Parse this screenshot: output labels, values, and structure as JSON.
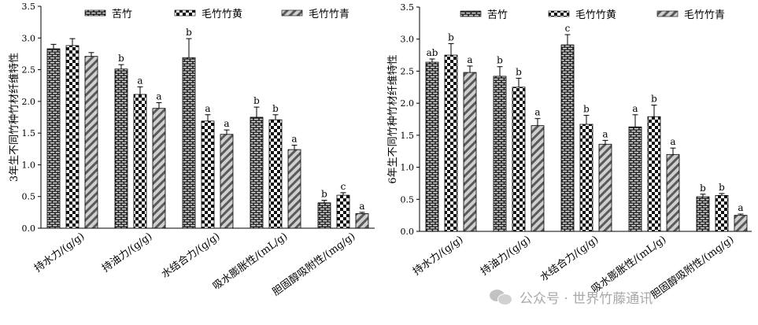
{
  "colors": {
    "axis": "#000000",
    "bar_stroke": "#000000",
    "watermark": "#9a9a9a"
  },
  "legend_patterns": [
    "brick",
    "checker",
    "diagonal"
  ],
  "watermark": {
    "icon": "wechat-icon",
    "text": "公众号 · 世界竹藤通讯"
  },
  "chart_data": [
    {
      "type": "bar",
      "panel": "left",
      "categories": [
        "持水力/(g/g)",
        "持油力/(g/g)",
        "水结合力/(g/g)",
        "吸水膨胀性/(mL/g)",
        "胆固醇吸附性/(mg/g)"
      ],
      "series": [
        {
          "name": "苦竹",
          "pattern": "brick",
          "values": [
            2.83,
            2.51,
            2.69,
            1.75,
            0.4
          ],
          "errors": [
            0.07,
            0.07,
            0.3,
            0.16,
            0.04
          ],
          "letters": [
            "",
            "b",
            "b",
            "b",
            "b"
          ]
        },
        {
          "name": "毛竹竹黄",
          "pattern": "checker",
          "values": [
            2.88,
            2.11,
            1.69,
            1.71,
            0.52
          ],
          "errors": [
            0.11,
            0.12,
            0.1,
            0.08,
            0.04
          ],
          "letters": [
            "",
            "a",
            "a",
            "b",
            "c"
          ]
        },
        {
          "name": "毛竹竹青",
          "pattern": "diagonal",
          "values": [
            2.71,
            1.89,
            1.48,
            1.24,
            0.23
          ],
          "errors": [
            0.06,
            0.09,
            0.07,
            0.07,
            0.02
          ],
          "letters": [
            "",
            "a",
            "a",
            "a",
            "a"
          ]
        }
      ],
      "ylabel": "3年生不同竹种竹材纤维特性",
      "xlabel": "",
      "ylim": [
        0,
        3.5
      ],
      "yticks": [
        "0.0",
        "0.5",
        "1.0",
        "1.5",
        "2.0",
        "2.5",
        "3.0",
        "3.5"
      ],
      "grid": false,
      "legend": "top"
    },
    {
      "type": "bar",
      "panel": "right",
      "categories": [
        "持水力/(g/g)",
        "持油力/(g/g)",
        "水结合力/(g/g)",
        "吸水膨胀性/(mL/g)",
        "胆固醇吸附性/(mg/g)"
      ],
      "series": [
        {
          "name": "苦竹",
          "pattern": "brick",
          "values": [
            2.64,
            2.42,
            2.91,
            1.63,
            0.54
          ],
          "errors": [
            0.05,
            0.15,
            0.16,
            0.19,
            0.04
          ],
          "letters": [
            "ab",
            "b",
            "c",
            "a",
            "b"
          ]
        },
        {
          "name": "毛竹竹黄",
          "pattern": "checker",
          "values": [
            2.75,
            2.25,
            1.67,
            1.79,
            0.56
          ],
          "errors": [
            0.18,
            0.14,
            0.14,
            0.18,
            0.03
          ],
          "letters": [
            "b",
            "b",
            "b",
            "b",
            "b"
          ]
        },
        {
          "name": "毛竹竹青",
          "pattern": "diagonal",
          "values": [
            2.48,
            1.65,
            1.36,
            1.2,
            0.25
          ],
          "errors": [
            0.1,
            0.11,
            0.06,
            0.1,
            0.02
          ],
          "letters": [
            "a",
            "a",
            "a",
            "a",
            "a"
          ]
        }
      ],
      "ylabel": "6年生不同竹种竹材纤维特性",
      "xlabel": "",
      "ylim": [
        0,
        3.5
      ],
      "yticks": [
        "0.0",
        "0.5",
        "1.0",
        "1.5",
        "2.0",
        "2.5",
        "3.0",
        "3.5"
      ],
      "grid": false,
      "legend": "top"
    }
  ]
}
